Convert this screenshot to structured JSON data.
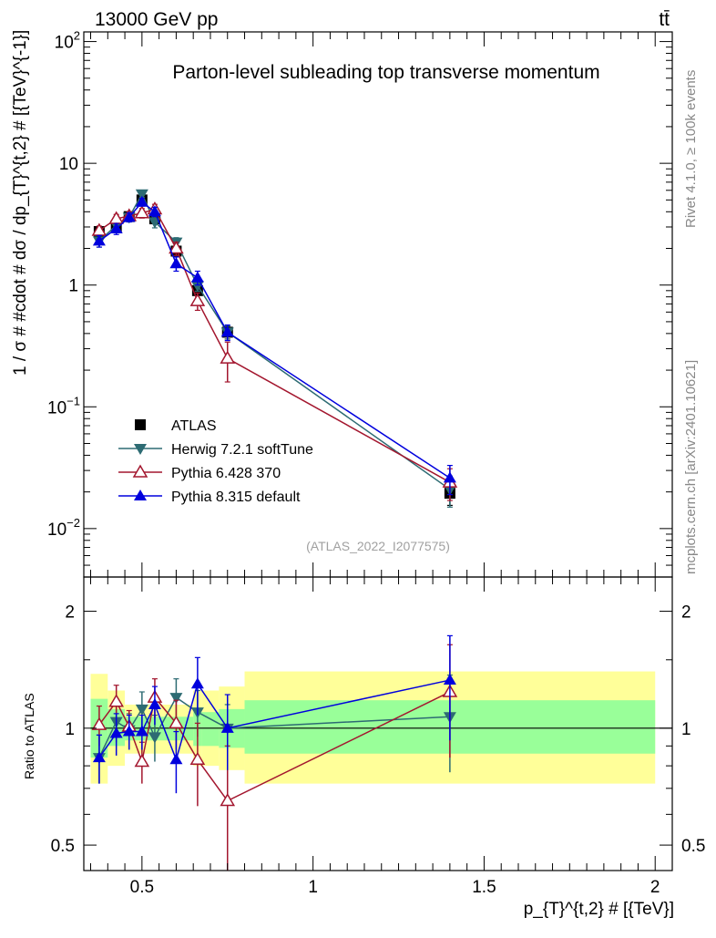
{
  "header": {
    "energy_label": "13000 GeV pp",
    "process_label": "tt̄"
  },
  "side_labels": {
    "rivet": "Rivet 4.1.0, ≥ 100k events",
    "mcplots": "mcplots.cern.ch [arXiv:2401.10621]"
  },
  "colors": {
    "atlas": "#000000",
    "herwig": "#2d6b73",
    "pythia6": "#a3162e",
    "pythia8": "#0000dd",
    "band_outer": "#ffff99",
    "band_inner": "#99ff99"
  },
  "chart_data": [
    {
      "type": "line",
      "title": "Parton-level subleading top transverse momentum",
      "ylabel": "1 / σ # #cdot # dσ / dp_{T}^{t,2} # [{TeV}^{-1}]",
      "xlabel": "p_{T}^{t,2} # [{TeV}]",
      "yscale": "log",
      "xlim": [
        0.33,
        2.05
      ],
      "ylim": [
        0.004,
        120
      ],
      "y_ticks": [
        {
          "value": 0.01,
          "base": "10",
          "exp": "−2"
        },
        {
          "value": 0.1,
          "base": "10",
          "exp": "−1"
        },
        {
          "value": 1,
          "base": "1",
          "exp": ""
        },
        {
          "value": 10,
          "base": "10",
          "exp": ""
        },
        {
          "value": 100,
          "base": "10",
          "exp": "2"
        }
      ],
      "watermark": "(ATLAS_2022_I2077575)",
      "x": [
        0.375,
        0.425,
        0.4625,
        0.5,
        0.5375,
        0.6,
        0.6625,
        0.75,
        1.4
      ],
      "series": [
        {
          "name": "ATLAS",
          "marker": "square",
          "values": [
            2.75,
            3.0,
            3.65,
            5.0,
            3.5,
            1.9,
            0.9,
            0.41,
            0.0195
          ],
          "err": [
            0.2,
            0.2,
            0.25,
            0.3,
            0.3,
            0.15,
            0.07,
            0.05,
            0.004
          ]
        },
        {
          "name": "Herwig 7.2.1 softTune",
          "marker": "triangle-down",
          "values": [
            2.3,
            3.1,
            3.6,
            5.6,
            3.3,
            2.25,
            0.99,
            0.41,
            0.021
          ],
          "err": [
            0.25,
            0.3,
            0.3,
            0.35,
            0.35,
            0.2,
            0.1,
            0.05,
            0.006
          ]
        },
        {
          "name": "Pythia 6.428 370",
          "marker": "triangle-open",
          "values": [
            2.8,
            3.5,
            3.7,
            3.9,
            4.2,
            2.0,
            0.74,
            0.25,
            0.024
          ],
          "err": [
            0.25,
            0.3,
            0.3,
            0.35,
            0.4,
            0.25,
            0.12,
            0.09,
            0.007
          ]
        },
        {
          "name": "Pythia 8.315 default",
          "marker": "triangle-up",
          "values": [
            2.3,
            2.9,
            3.6,
            4.8,
            4.0,
            1.5,
            1.15,
            0.41,
            0.026
          ],
          "err": [
            0.25,
            0.3,
            0.3,
            0.35,
            0.35,
            0.2,
            0.15,
            0.06,
            0.007
          ]
        }
      ]
    },
    {
      "type": "line",
      "ylabel": "Ratio to ATLAS",
      "xlabel": "p_{T}^{t,2} # [{TeV}]",
      "yscale": "log",
      "xlim": [
        0.33,
        2.05
      ],
      "ylim": [
        0.43,
        2.45
      ],
      "y_ticks": [
        0.5,
        1,
        2
      ],
      "x_ticks": [
        0.5,
        1,
        1.5,
        2
      ],
      "x_tick_labels": [
        "0.5",
        "1",
        "1.5",
        "2"
      ],
      "x": [
        0.375,
        0.425,
        0.4625,
        0.5,
        0.5375,
        0.6,
        0.6625,
        0.75,
        1.4
      ],
      "bands": {
        "edges": [
          0.35,
          0.4,
          0.45,
          0.475,
          0.525,
          0.55,
          0.65,
          0.675,
          0.725,
          0.8,
          2.0
        ],
        "outer_lo": [
          0.72,
          0.8,
          0.86,
          0.86,
          0.86,
          0.86,
          0.8,
          0.8,
          0.78,
          0.72
        ],
        "outer_hi": [
          1.38,
          1.25,
          1.15,
          1.15,
          1.15,
          1.15,
          1.25,
          1.25,
          1.28,
          1.4
        ],
        "inner_lo": [
          0.84,
          0.9,
          0.93,
          0.93,
          0.93,
          0.93,
          0.9,
          0.9,
          0.89,
          0.86
        ],
        "inner_hi": [
          1.19,
          1.12,
          1.07,
          1.07,
          1.07,
          1.07,
          1.1,
          1.1,
          1.12,
          1.18
        ]
      },
      "series": [
        {
          "name": "Herwig 7.2.1 softTune",
          "marker": "triangle-down",
          "values": [
            0.84,
            1.04,
            0.99,
            1.12,
            0.95,
            1.2,
            1.1,
            1.0,
            1.07
          ],
          "err": [
            0.12,
            0.12,
            0.1,
            0.12,
            0.13,
            0.14,
            0.15,
            0.15,
            0.3
          ]
        },
        {
          "name": "Pythia 6.428 370",
          "marker": "triangle-open",
          "values": [
            1.02,
            1.17,
            1.01,
            0.82,
            1.2,
            1.03,
            0.83,
            0.65,
            1.24
          ],
          "err": [
            0.12,
            0.12,
            0.1,
            0.1,
            0.14,
            0.15,
            0.2,
            0.25,
            0.4
          ]
        },
        {
          "name": "Pythia 8.315 default",
          "marker": "triangle-up",
          "values": [
            0.84,
            0.97,
            0.98,
            0.98,
            1.15,
            0.83,
            1.3,
            1.0,
            1.33
          ],
          "err": [
            0.12,
            0.12,
            0.1,
            0.1,
            0.13,
            0.15,
            0.22,
            0.22,
            0.4
          ]
        }
      ]
    }
  ]
}
